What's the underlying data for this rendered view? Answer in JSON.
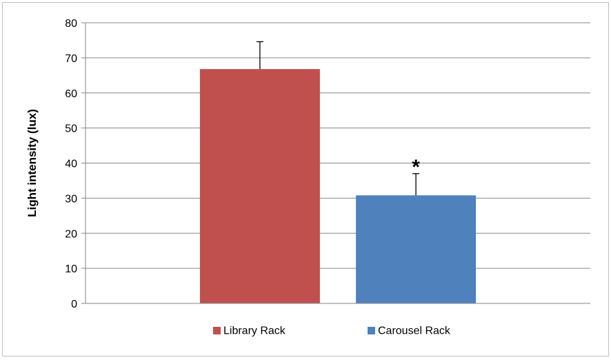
{
  "chart_data": {
    "type": "bar",
    "title": "",
    "xlabel": "",
    "ylabel": "Light intensity (lux)",
    "ylim": [
      0,
      80
    ],
    "yticks": [
      0,
      10,
      20,
      30,
      40,
      50,
      60,
      70,
      80
    ],
    "grid": true,
    "legend_position": "bottom",
    "series": [
      {
        "name": "Library Rack",
        "value": 66.8,
        "error": 7.8,
        "color": "#C0504D",
        "annotation": ""
      },
      {
        "name": "Carousel Rack",
        "value": 30.8,
        "error": 6.2,
        "color": "#4F81BD",
        "annotation": "*"
      }
    ]
  }
}
